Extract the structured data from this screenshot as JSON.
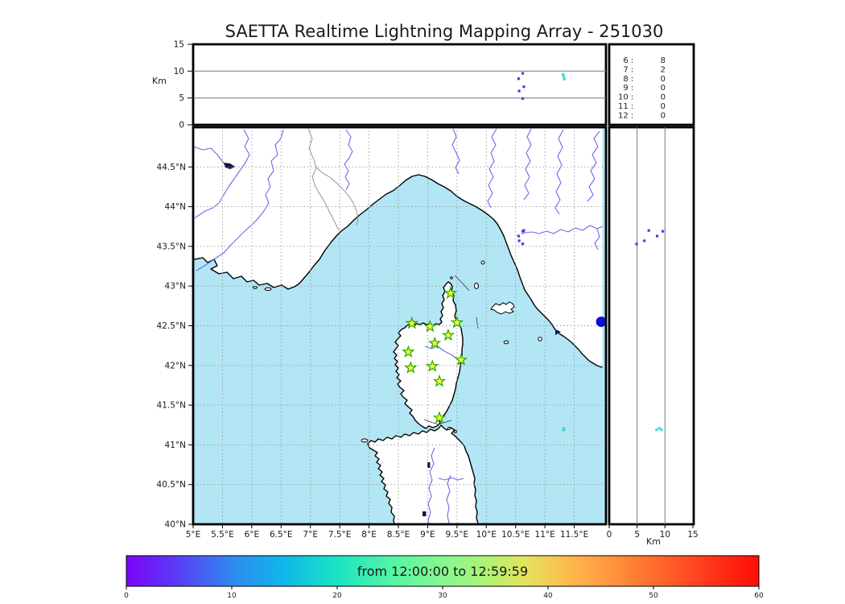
{
  "title": "SAETTA Realtime Lightning Mapping Array - 251030",
  "top_panel": {
    "y_axis_label": "Km",
    "y_ticks": [
      {
        "v": 0,
        "label": "0"
      },
      {
        "v": 5,
        "label": "5"
      },
      {
        "v": 10,
        "label": "10"
      },
      {
        "v": 15,
        "label": "15"
      }
    ]
  },
  "stats_table": {
    "rows": [
      {
        "hour": "6",
        "count": "8",
        "color": "#f22222"
      },
      {
        "hour": "7",
        "count": "2",
        "color": "#1a1a1a"
      },
      {
        "hour": "8",
        "count": "0",
        "color": "#1a1a1a"
      },
      {
        "hour": "9",
        "count": "0",
        "color": "#1a1a1a"
      },
      {
        "hour": "10",
        "count": "0",
        "color": "#1a1a1a"
      },
      {
        "hour": "11",
        "count": "0",
        "color": "#1a1a1a"
      },
      {
        "hour": "12",
        "count": "0",
        "color": "#1a1a1a"
      }
    ]
  },
  "map_panel": {
    "lat_ticks": [
      {
        "v": 44.5,
        "label": "44.5°N"
      },
      {
        "v": 44.0,
        "label": "44°N"
      },
      {
        "v": 43.5,
        "label": "43.5°N"
      },
      {
        "v": 43.0,
        "label": "43°N"
      },
      {
        "v": 42.5,
        "label": "42.5°N"
      },
      {
        "v": 42.0,
        "label": "42°N"
      },
      {
        "v": 41.5,
        "label": "41.5°N"
      },
      {
        "v": 41.0,
        "label": "41°N"
      },
      {
        "v": 40.5,
        "label": "40.5°N"
      },
      {
        "v": 40.0,
        "label": "40°N"
      }
    ],
    "lon_ticks": [
      {
        "v": 5.0,
        "label": "5°E"
      },
      {
        "v": 5.5,
        "label": "5.5°E"
      },
      {
        "v": 6.0,
        "label": "6°E"
      },
      {
        "v": 6.5,
        "label": "6.5°E"
      },
      {
        "v": 7.0,
        "label": "7°E"
      },
      {
        "v": 7.5,
        "label": "7.5°E"
      },
      {
        "v": 8.0,
        "label": "8°E"
      },
      {
        "v": 8.5,
        "label": "8.5°E"
      },
      {
        "v": 9.0,
        "label": "9°E"
      },
      {
        "v": 9.5,
        "label": "9.5°E"
      },
      {
        "v": 10.0,
        "label": "10°E"
      },
      {
        "v": 10.5,
        "label": "10.5°E"
      },
      {
        "v": 11.0,
        "label": "11°E"
      },
      {
        "v": 11.5,
        "label": "11.5°E"
      }
    ]
  },
  "right_panel": {
    "x_axis_label": "Km",
    "x_ticks": [
      {
        "v": 0,
        "label": "0"
      },
      {
        "v": 5,
        "label": "5"
      },
      {
        "v": 10,
        "label": "10"
      },
      {
        "v": 15,
        "label": "15"
      }
    ]
  },
  "colorbar": {
    "label": "from 12:00:00 to 12:59:59",
    "tick_labels": [
      "0",
      "10",
      "20",
      "30",
      "40",
      "50",
      "60"
    ],
    "gradient_stops": [
      {
        "o": "0%",
        "c": "#7c04fa"
      },
      {
        "o": "8%",
        "c": "#5a3cf6"
      },
      {
        "o": "17%",
        "c": "#2e8cf0"
      },
      {
        "o": "25%",
        "c": "#0fb7e9"
      },
      {
        "o": "33%",
        "c": "#19e3c3"
      },
      {
        "o": "42%",
        "c": "#55f3a5"
      },
      {
        "o": "50%",
        "c": "#86f791"
      },
      {
        "o": "58%",
        "c": "#b5f26f"
      },
      {
        "o": "63%",
        "c": "#e6e25e"
      },
      {
        "o": "71%",
        "c": "#ffb44a"
      },
      {
        "o": "80%",
        "c": "#ff8136"
      },
      {
        "o": "90%",
        "c": "#ff4520"
      },
      {
        "o": "100%",
        "c": "#ff0d05"
      }
    ]
  },
  "colors": {
    "sea": "#b2e6f5",
    "land": "#ffffff",
    "star_fill": "#ffff33",
    "star_edge": "#22aa00",
    "event_blue": "#4343d9",
    "event_teal": "#3fd9c9",
    "marker_blue": "#0d0dd8",
    "grid": "#999999"
  },
  "chart_data": {
    "type": "scatter",
    "title": "SAETTA Realtime Lightning Mapping Array - 251030",
    "layout": "lightning mapping array realtime display: top panel altitude(km) vs longitude, main panel map lon/lat, right panel altitude(km) vs latitude, color = minutes within time window",
    "map_extent": {
      "lon": [
        5.0,
        12.0
      ],
      "lat": [
        40.0,
        45.0
      ]
    },
    "alt_range_km": [
      0,
      15
    ],
    "time_window": {
      "start": "12:00:00",
      "end": "12:59:59"
    },
    "colorbar_range_minutes": [
      0,
      60
    ],
    "hourly_flash_counts": [
      {
        "hour": 6,
        "count": 8
      },
      {
        "hour": 7,
        "count": 2
      },
      {
        "hour": 8,
        "count": 0
      },
      {
        "hour": 9,
        "count": 0
      },
      {
        "hour": 10,
        "count": 0
      },
      {
        "hour": 11,
        "count": 0
      },
      {
        "hour": 12,
        "count": 0
      }
    ],
    "stations": [
      {
        "lon": 9.39,
        "lat": 42.91
      },
      {
        "lon": 8.73,
        "lat": 42.53
      },
      {
        "lon": 9.04,
        "lat": 42.49
      },
      {
        "lon": 9.5,
        "lat": 42.54
      },
      {
        "lon": 9.35,
        "lat": 42.38
      },
      {
        "lon": 9.12,
        "lat": 42.28
      },
      {
        "lon": 8.67,
        "lat": 42.17
      },
      {
        "lon": 9.57,
        "lat": 42.07
      },
      {
        "lon": 8.71,
        "lat": 41.97
      },
      {
        "lon": 9.08,
        "lat": 41.99
      },
      {
        "lon": 9.2,
        "lat": 41.8
      },
      {
        "lon": 9.2,
        "lat": 41.34
      }
    ],
    "events": [
      {
        "lon": 10.62,
        "lat": 43.69,
        "alt_km": 9.6,
        "color": "#4343d9"
      },
      {
        "lon": 10.55,
        "lat": 43.63,
        "alt_km": 8.6,
        "color": "#4343d9"
      },
      {
        "lon": 10.64,
        "lat": 43.7,
        "alt_km": 7.1,
        "color": "#4343d9"
      },
      {
        "lon": 10.56,
        "lat": 43.57,
        "alt_km": 6.3,
        "color": "#4343d9"
      },
      {
        "lon": 10.62,
        "lat": 43.53,
        "alt_km": 4.9,
        "color": "#4343d9"
      },
      {
        "lon": 11.31,
        "lat": 41.19,
        "alt_km": 9.4,
        "color": "#3fd9c9"
      },
      {
        "lon": 11.32,
        "lat": 41.21,
        "alt_km": 9.0,
        "color": "#3fd9c9"
      },
      {
        "lon": 11.33,
        "lat": 41.19,
        "alt_km": 8.5,
        "color": "#3fd9c9"
      }
    ],
    "large_marker": {
      "lon": 11.96,
      "lat": 42.55,
      "color": "#0d0dd8"
    }
  }
}
